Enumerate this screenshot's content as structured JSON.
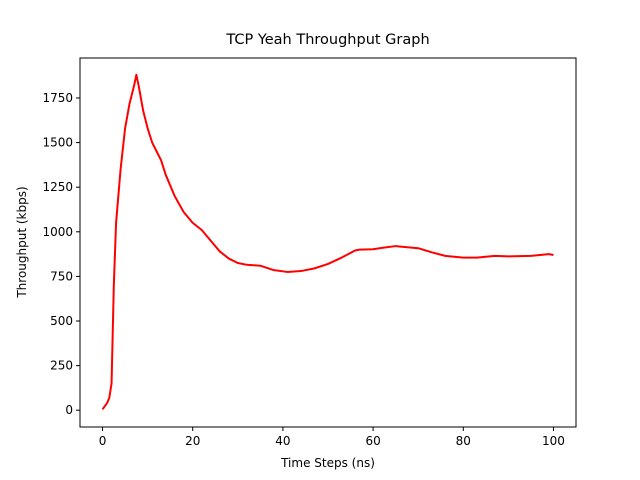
{
  "chart_data": {
    "type": "line",
    "title": "TCP Yeah Throughput Graph",
    "x_label": "Time Steps (ns)",
    "y_label": "Throughput (kbps)",
    "x": [
      0,
      1,
      1.5,
      2,
      2.5,
      3,
      4,
      5,
      6,
      7,
      7.5,
      8,
      9,
      10,
      11,
      12,
      13,
      14,
      16,
      18,
      20,
      22,
      24,
      26,
      28,
      30,
      32,
      35,
      38,
      41,
      44,
      47,
      50,
      53,
      56,
      57,
      60,
      62,
      65,
      67,
      70,
      73,
      76,
      80,
      83,
      87,
      90,
      95,
      99,
      100
    ],
    "series": [
      {
        "name": "Throughput",
        "color": "#ff0000",
        "values": [
          5,
          40,
          70,
          150,
          700,
          1050,
          1350,
          1580,
          1720,
          1820,
          1880,
          1820,
          1680,
          1580,
          1500,
          1450,
          1400,
          1320,
          1200,
          1110,
          1050,
          1010,
          950,
          890,
          850,
          825,
          815,
          810,
          785,
          775,
          780,
          795,
          820,
          855,
          895,
          900,
          902,
          910,
          920,
          915,
          908,
          885,
          865,
          855,
          855,
          865,
          862,
          865,
          875,
          870
        ]
      }
    ],
    "xlim": [
      -5,
      105
    ],
    "ylim": [
      -94,
      1974
    ],
    "xticks": [
      0,
      20,
      40,
      60,
      80,
      100
    ],
    "yticks": [
      0,
      250,
      500,
      750,
      1000,
      1250,
      1500,
      1750
    ]
  }
}
